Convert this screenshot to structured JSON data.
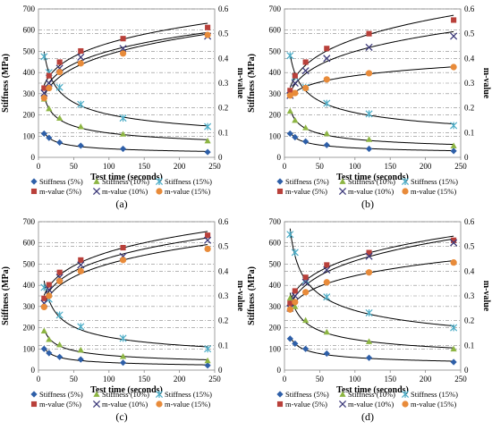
{
  "style": {
    "stiff5_color": "#2e5fa8",
    "stiff10_color": "#8db543",
    "stiff15_color": "#4bacc6",
    "m5_color": "#b9403a",
    "m10_color": "#3d3a7a",
    "m15_color": "#e88b3a",
    "trend_color": "#000000",
    "grid_color": "#888888"
  },
  "chart_data": [
    {
      "type": "scatter",
      "panel_label": "(a)",
      "xlabel": "Test time (seconds)",
      "ylabel": "Stiffness (MPa)",
      "y2label": "m-value",
      "xlim": [
        0,
        250
      ],
      "ylim": [
        0,
        700
      ],
      "y2lim": [
        0,
        0.6
      ],
      "xticks": [
        0,
        50,
        100,
        150,
        200,
        250
      ],
      "yticks": [
        0,
        100,
        200,
        300,
        400,
        500,
        600,
        700
      ],
      "y2ticks": [
        "0",
        "0.1",
        "0.2",
        "0.3",
        "0.4",
        "0.5",
        "0.6"
      ],
      "grid": "dash-dot horizontal",
      "legend_placement": "bottom",
      "x": [
        8,
        15,
        30,
        60,
        120,
        240
      ],
      "series": [
        {
          "name": "Stiffness (5%)",
          "axis": "left",
          "marker": "diamond",
          "color_key": "stiff5_color",
          "values": [
            112,
            92,
            70,
            55,
            40,
            25
          ]
        },
        {
          "name": "Stiffness (10%)",
          "axis": "left",
          "marker": "triangle",
          "color_key": "stiff10_color",
          "values": [
            275,
            230,
            185,
            145,
            110,
            78
          ]
        },
        {
          "name": "Stiffness (15%)",
          "axis": "left",
          "marker": "star",
          "color_key": "stiff15_color",
          "values": [
            475,
            400,
            330,
            250,
            185,
            145
          ]
        },
        {
          "name": "m-value (5%)",
          "axis": "right",
          "marker": "square",
          "color_key": "m5_color",
          "values": [
            0.28,
            0.33,
            0.385,
            0.43,
            0.48,
            0.525
          ]
        },
        {
          "name": "m-value (10%)",
          "axis": "right",
          "marker": "x",
          "color_key": "m10_color",
          "values": [
            0.26,
            0.3,
            0.36,
            0.405,
            0.44,
            0.49
          ]
        },
        {
          "name": "m-value (15%)",
          "axis": "right",
          "marker": "circle",
          "color_key": "m15_color",
          "values": [
            0.24,
            0.28,
            0.345,
            0.38,
            0.42,
            0.495
          ]
        }
      ]
    },
    {
      "type": "scatter",
      "panel_label": "(b)",
      "xlabel": "Test time (seconds)",
      "ylabel": "Stiffness (MPa)",
      "y2label": "m-value",
      "xlim": [
        0,
        250
      ],
      "ylim": [
        0,
        700
      ],
      "y2lim": [
        0,
        0.6
      ],
      "xticks": [
        0,
        50,
        100,
        150,
        200,
        250
      ],
      "yticks": [
        0,
        100,
        200,
        300,
        400,
        500,
        600,
        700
      ],
      "y2ticks": [
        "0",
        "0.1",
        "0.2",
        "0.3",
        "0.4",
        "0.5",
        "0.6"
      ],
      "grid": "dash-dot horizontal",
      "legend_placement": "bottom",
      "x": [
        8,
        15,
        30,
        60,
        120,
        240
      ],
      "series": [
        {
          "name": "Stiffness (5%)",
          "axis": "left",
          "marker": "diamond",
          "color_key": "stiff5_color",
          "values": [
            112,
            95,
            75,
            58,
            40,
            30
          ]
        },
        {
          "name": "Stiffness (10%)",
          "axis": "left",
          "marker": "triangle",
          "color_key": "stiff10_color",
          "values": [
            218,
            175,
            140,
            112,
            85,
            55
          ]
        },
        {
          "name": "Stiffness (15%)",
          "axis": "left",
          "marker": "star",
          "color_key": "stiff15_color",
          "values": [
            480,
            380,
            330,
            255,
            205,
            150
          ]
        },
        {
          "name": "m-value (5%)",
          "axis": "right",
          "marker": "square",
          "color_key": "m5_color",
          "values": [
            0.27,
            0.33,
            0.385,
            0.44,
            0.5,
            0.555
          ]
        },
        {
          "name": "m-value (10%)",
          "axis": "right",
          "marker": "x",
          "color_key": "m10_color",
          "values": [
            0.25,
            0.3,
            0.35,
            0.4,
            0.445,
            0.49
          ]
        },
        {
          "name": "m-value (15%)",
          "axis": "right",
          "marker": "circle",
          "color_key": "m15_color",
          "values": [
            0.25,
            0.26,
            0.28,
            0.315,
            0.34,
            0.365
          ]
        }
      ]
    },
    {
      "type": "scatter",
      "panel_label": "(c)",
      "xlabel": "Test time (seconds)",
      "ylabel": "Stiffness (MPa)",
      "y2label": "m-value",
      "xlim": [
        0,
        250
      ],
      "ylim": [
        0,
        700
      ],
      "y2lim": [
        0,
        0.6
      ],
      "xticks": [
        0,
        50,
        100,
        150,
        200,
        250
      ],
      "yticks": [
        0,
        100,
        200,
        300,
        400,
        500,
        600,
        700
      ],
      "y2ticks": [
        "0",
        "0.1",
        "0.2",
        "0.3",
        "0.4",
        "0.5",
        "0.6"
      ],
      "grid": "dash-dot horizontal",
      "legend_placement": "bottom",
      "x": [
        8,
        15,
        30,
        60,
        120,
        240
      ],
      "series": [
        {
          "name": "Stiffness (5%)",
          "axis": "left",
          "marker": "diamond",
          "color_key": "stiff5_color",
          "values": [
            100,
            80,
            62,
            50,
            35,
            22
          ]
        },
        {
          "name": "Stiffness (10%)",
          "axis": "left",
          "marker": "triangle",
          "color_key": "stiff10_color",
          "values": [
            185,
            145,
            120,
            95,
            65,
            45
          ]
        },
        {
          "name": "Stiffness (15%)",
          "axis": "left",
          "marker": "star",
          "color_key": "stiff15_color",
          "values": [
            390,
            335,
            260,
            205,
            150,
            100
          ]
        },
        {
          "name": "m-value (5%)",
          "axis": "right",
          "marker": "square",
          "color_key": "m5_color",
          "values": [
            0.29,
            0.345,
            0.395,
            0.445,
            0.495,
            0.545
          ]
        },
        {
          "name": "m-value (10%)",
          "axis": "right",
          "marker": "x",
          "color_key": "m10_color",
          "values": [
            0.27,
            0.325,
            0.375,
            0.425,
            0.46,
            0.525
          ]
        },
        {
          "name": "m-value (15%)",
          "axis": "right",
          "marker": "circle",
          "color_key": "m15_color",
          "values": [
            0.255,
            0.3,
            0.36,
            0.4,
            0.445,
            0.49
          ]
        }
      ]
    },
    {
      "type": "scatter",
      "panel_label": "(d)",
      "xlabel": "Test time (seconds)",
      "ylabel": "Stiffness (MPa)",
      "y2label": "m-value",
      "xlim": [
        0,
        250
      ],
      "ylim": [
        0,
        700
      ],
      "y2lim": [
        0,
        0.6
      ],
      "xticks": [
        0,
        50,
        100,
        150,
        200,
        250
      ],
      "yticks": [
        0,
        100,
        200,
        300,
        400,
        500,
        600,
        700
      ],
      "y2ticks": [
        "0",
        "0.1",
        "0.2",
        "0.3",
        "0.4",
        "0.5",
        "0.6"
      ],
      "grid": "dash-dot horizontal",
      "legend_placement": "bottom",
      "x": [
        8,
        15,
        30,
        60,
        120,
        240
      ],
      "series": [
        {
          "name": "Stiffness (5%)",
          "axis": "left",
          "marker": "diamond",
          "color_key": "stiff5_color",
          "values": [
            148,
            125,
            100,
            78,
            58,
            38
          ]
        },
        {
          "name": "Stiffness (10%)",
          "axis": "left",
          "marker": "triangle",
          "color_key": "stiff10_color",
          "values": [
            340,
            300,
            235,
            180,
            135,
            100
          ]
        },
        {
          "name": "Stiffness (15%)",
          "axis": "left",
          "marker": "star",
          "color_key": "stiff15_color",
          "values": [
            640,
            555,
            425,
            345,
            270,
            200
          ]
        },
        {
          "name": "m-value (5%)",
          "axis": "right",
          "marker": "square",
          "color_key": "m5_color",
          "values": [
            0.27,
            0.32,
            0.375,
            0.425,
            0.475,
            0.525
          ]
        },
        {
          "name": "m-value (10%)",
          "axis": "right",
          "marker": "x",
          "color_key": "m10_color",
          "values": [
            0.25,
            0.3,
            0.355,
            0.405,
            0.46,
            0.515
          ]
        },
        {
          "name": "m-value (15%)",
          "axis": "right",
          "marker": "circle",
          "color_key": "m15_color",
          "values": [
            0.245,
            0.275,
            0.315,
            0.355,
            0.395,
            0.435
          ]
        }
      ]
    }
  ]
}
